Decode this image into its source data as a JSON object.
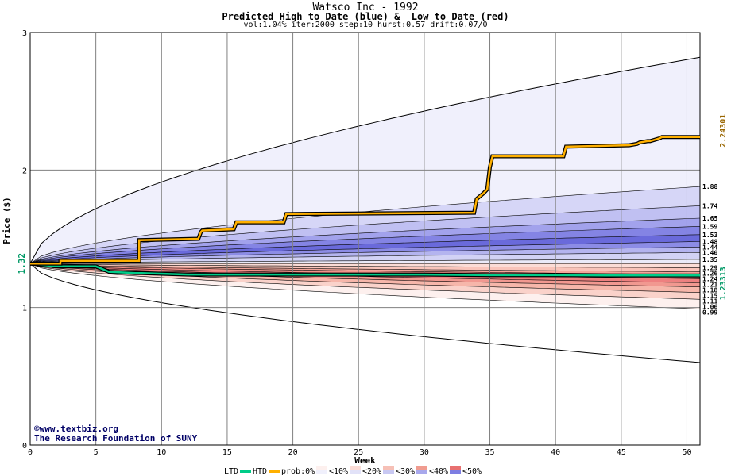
{
  "chart_data": {
    "type": "area",
    "title": "Watsco Inc - 1992",
    "subtitle": "Predicted High to Date (blue) &  Low to Date (red)",
    "params": "vol:1.04% iter:2000 step:10 hurst:0.57 drift:0.07/0",
    "xlabel": "Week",
    "ylabel": "Price ($)",
    "xlim": [
      0,
      51
    ],
    "ylim": [
      0,
      3
    ],
    "x_ticks": [
      0,
      5,
      10,
      15,
      20,
      25,
      30,
      35,
      40,
      45,
      50
    ],
    "y_ticks": [
      0,
      1,
      2,
      3
    ],
    "grid": true,
    "start_price_label": "1.32",
    "start_price": 1.32,
    "right_labels": [
      "1.88",
      "1.74",
      "1.65",
      "1.59",
      "1.53",
      "1.48",
      "1.44",
      "1.40",
      "1.35",
      "1.29",
      "1.26",
      "1.24",
      "1.21",
      "1.18",
      "1.15",
      "1.11",
      "1.06",
      "0.99"
    ],
    "right_values": [
      1.88,
      1.74,
      1.65,
      1.59,
      1.53,
      1.48,
      1.44,
      1.4,
      1.35,
      1.29,
      1.26,
      1.24,
      1.21,
      1.18,
      1.15,
      1.11,
      1.06,
      0.99
    ],
    "outer_band": {
      "upper_end": 2.82,
      "lower_end": 0.6
    },
    "high_to_date": {
      "name": "HTD",
      "final_label": "2.24301",
      "x": [
        0,
        2.3,
        2.3,
        8.3,
        8.3,
        12.8,
        13,
        13.1,
        15.5,
        15.7,
        19.3,
        19.5,
        33.8,
        34,
        34.5,
        34.8,
        35,
        35.2,
        40.6,
        40.8,
        45.5,
        45.6,
        46.2,
        46.4,
        47,
        47.2,
        47.9,
        48.1,
        51
      ],
      "y": [
        1.32,
        1.32,
        1.34,
        1.34,
        1.49,
        1.5,
        1.55,
        1.56,
        1.57,
        1.62,
        1.62,
        1.68,
        1.69,
        1.79,
        1.83,
        1.86,
        2.02,
        2.1,
        2.1,
        2.17,
        2.18,
        2.18,
        2.19,
        2.2,
        2.21,
        2.21,
        2.23,
        2.24,
        2.24
      ]
    },
    "low_to_date": {
      "name": "LTD",
      "final_label": "1.23313",
      "x": [
        0,
        2,
        5,
        5.5,
        6,
        8,
        8.5,
        12,
        20,
        25,
        30,
        35,
        40,
        45,
        51
      ],
      "y": [
        1.32,
        1.3,
        1.3,
        1.28,
        1.26,
        1.25,
        1.25,
        1.24,
        1.24,
        1.24,
        1.24,
        1.235,
        1.235,
        1.233,
        1.233
      ]
    },
    "legend": {
      "ltd": "LTD",
      "htd": "HTD",
      "prob": "prob:0%",
      "bins": [
        "<10%",
        "<20%",
        "<30%",
        "<40%",
        "<50%"
      ]
    },
    "colors": {
      "grid": "#808080",
      "outer_blue": "#f0f0fc",
      "outer_red": "#fdf0ee",
      "blue_bands": [
        "#d6d6f7",
        "#c0c0f2",
        "#a2a2ec",
        "#8484e4",
        "#6a6adb",
        "#8c8ce6",
        "#b4b4ef",
        "#d2d2f5",
        "#eaeaf9"
      ],
      "red_bands": [
        "#fbdcd6",
        "#f9c4ba",
        "#f4a69a",
        "#f1928a",
        "#ee8080",
        "#f19890",
        "#f6b6aa",
        "#fad2ca"
      ],
      "htd": "#ffb000",
      "ltd": "#00cc88",
      "right_label_htd": "#996600",
      "right_label_ltd": "#009966",
      "start_label": "#009966",
      "credit": "#000066"
    }
  },
  "credits": {
    "line1": "©www.textbiz.org",
    "line2": "The Research Foundation of SUNY"
  }
}
